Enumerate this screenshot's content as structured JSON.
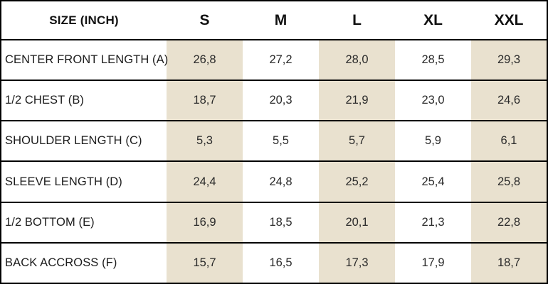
{
  "chart_data": {
    "type": "table",
    "title": "SIZE (INCH)",
    "columns": [
      "S",
      "M",
      "L",
      "XL",
      "XXL"
    ],
    "rows": [
      {
        "label": "CENTER FRONT LENGTH (A)",
        "values": [
          "26,8",
          "27,2",
          "28,0",
          "28,5",
          "29,3"
        ]
      },
      {
        "label": "1/2 CHEST (B)",
        "values": [
          "18,7",
          "20,3",
          "21,9",
          "23,0",
          "24,6"
        ]
      },
      {
        "label": "SHOULDER LENGTH (C)",
        "values": [
          "5,3",
          "5,5",
          "5,7",
          "5,9",
          "6,1"
        ]
      },
      {
        "label": "SLEEVE LENGTH (D)",
        "values": [
          "24,4",
          "24,8",
          "25,2",
          "25,4",
          "25,8"
        ]
      },
      {
        "label": "1/2 BOTTOM (E)",
        "values": [
          "16,9",
          "18,5",
          "20,1",
          "21,3",
          "22,8"
        ]
      },
      {
        "label": "BACK ACCROSS (F)",
        "values": [
          "15,7",
          "16,5",
          "17,3",
          "17,9",
          "18,7"
        ]
      }
    ],
    "shaded_columns": [
      0,
      2,
      4
    ],
    "colors": {
      "shaded_column_bg": "#e9e1cf",
      "border": "#000000",
      "header_text": "#111111",
      "cell_text": "#2a2a2a"
    },
    "layout": {
      "decimal_separator": ",",
      "grid": "horizontal-lines-only",
      "legend": "none"
    }
  }
}
